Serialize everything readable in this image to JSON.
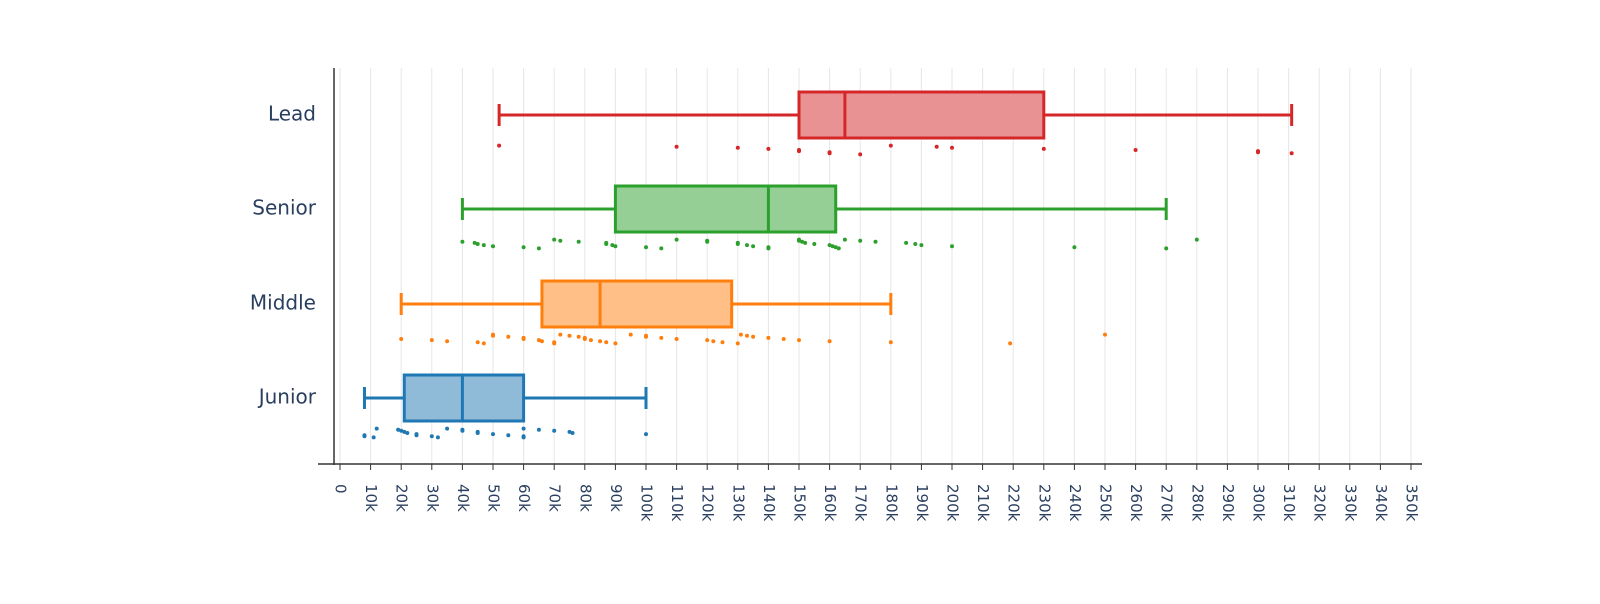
{
  "chart_data": {
    "type": "box",
    "orientation": "horizontal",
    "title": "",
    "xlabel": "",
    "ylabel": "",
    "xlim": [
      0,
      350000
    ],
    "x_ticks": [
      0,
      10000,
      20000,
      30000,
      40000,
      50000,
      60000,
      70000,
      80000,
      90000,
      100000,
      110000,
      120000,
      130000,
      140000,
      150000,
      160000,
      170000,
      180000,
      190000,
      200000,
      210000,
      220000,
      230000,
      240000,
      250000,
      260000,
      270000,
      280000,
      290000,
      300000,
      310000,
      320000,
      330000,
      340000,
      350000
    ],
    "x_tick_labels": [
      "0",
      "10k",
      "20k",
      "30k",
      "40k",
      "50k",
      "60k",
      "70k",
      "80k",
      "90k",
      "100k",
      "110k",
      "120k",
      "130k",
      "140k",
      "150k",
      "160k",
      "170k",
      "180k",
      "190k",
      "200k",
      "210k",
      "220k",
      "230k",
      "240k",
      "250k",
      "260k",
      "270k",
      "280k",
      "290k",
      "300k",
      "310k",
      "320k",
      "330k",
      "340k",
      "350k"
    ],
    "grid": "vertical",
    "legend": "none",
    "series": [
      {
        "name": "Lead",
        "color": "#d62728",
        "fill": "#e99293",
        "whisker_low": 52000,
        "q1": 150000,
        "median": 165000,
        "q3": 230000,
        "whisker_high": 311000,
        "points": [
          52000,
          110000,
          130000,
          140000,
          150000,
          150000,
          160000,
          160000,
          170000,
          180000,
          195000,
          200000,
          230000,
          260000,
          300000,
          300000,
          311000
        ]
      },
      {
        "name": "Senior",
        "color": "#2ca02c",
        "fill": "#95cf95",
        "whisker_low": 40000,
        "q1": 90000,
        "median": 140000,
        "q3": 162000,
        "whisker_high": 270000,
        "points": [
          40000,
          44000,
          45000,
          47000,
          50000,
          60000,
          65000,
          70000,
          72000,
          78000,
          87000,
          87000,
          89000,
          90000,
          100000,
          105000,
          110000,
          120000,
          120000,
          130000,
          130000,
          133000,
          135000,
          140000,
          140000,
          150000,
          150000,
          151000,
          152000,
          155000,
          160000,
          161000,
          162000,
          163000,
          165000,
          170000,
          175000,
          185000,
          188000,
          190000,
          200000,
          240000,
          270000,
          280000
        ]
      },
      {
        "name": "Middle",
        "color": "#ff7f0e",
        "fill": "#ffbf86",
        "whisker_low": 20000,
        "q1": 66000,
        "median": 85000,
        "q3": 128000,
        "whisker_high": 180000,
        "points": [
          20000,
          30000,
          35000,
          45000,
          47000,
          50000,
          50000,
          55000,
          60000,
          60000,
          65000,
          66000,
          70000,
          70000,
          72000,
          75000,
          78000,
          80000,
          80000,
          82000,
          85000,
          87000,
          90000,
          95000,
          100000,
          100000,
          105000,
          110000,
          120000,
          122000,
          125000,
          130000,
          131000,
          133000,
          135000,
          140000,
          145000,
          150000,
          160000,
          180000,
          219000,
          250000
        ]
      },
      {
        "name": "Junior",
        "color": "#1f77b4",
        "fill": "#8fbbd9",
        "whisker_low": 8000,
        "q1": 21000,
        "median": 40000,
        "q3": 60000,
        "whisker_high": 100000,
        "points": [
          8000,
          8000,
          11000,
          12000,
          19000,
          20000,
          21000,
          22000,
          25000,
          25000,
          30000,
          32000,
          35000,
          40000,
          40000,
          45000,
          45000,
          50000,
          55000,
          60000,
          60000,
          60000,
          65000,
          70000,
          75000,
          76000,
          100000
        ]
      }
    ]
  }
}
